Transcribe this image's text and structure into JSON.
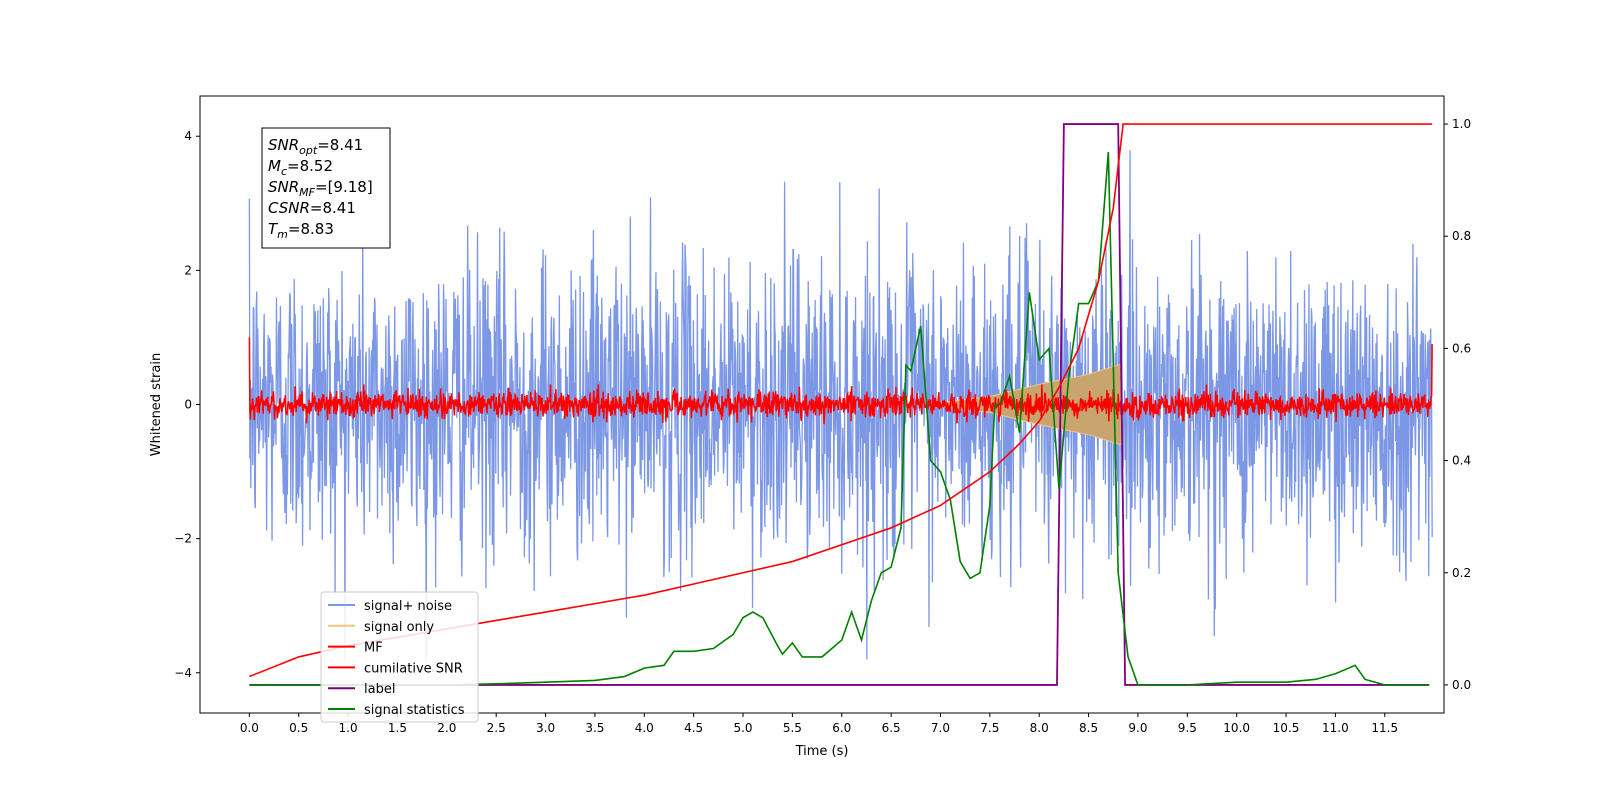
{
  "chart_data": {
    "type": "line",
    "xlabel": "Time (s)",
    "ylabel": "Whitened strain",
    "xlim": [
      -0.5,
      12.1
    ],
    "ylim": [
      -4.6,
      4.6
    ],
    "y2lim": [
      -0.05,
      1.05
    ],
    "x_ticks": [
      0.0,
      0.5,
      1.0,
      1.5,
      2.0,
      2.5,
      3.0,
      3.5,
      4.0,
      4.5,
      5.0,
      5.5,
      6.0,
      6.5,
      7.0,
      7.5,
      8.0,
      8.5,
      9.0,
      9.5,
      10.0,
      10.5,
      11.0,
      11.5
    ],
    "x_tick_labels": [
      "0.0",
      "0.5",
      "1.0",
      "1.5",
      "2.0",
      "2.5",
      "3.0",
      "3.5",
      "4.0",
      "4.5",
      "5.0",
      "5.5",
      "6.0",
      "6.5",
      "7.0",
      "7.5",
      "8.0",
      "8.5",
      "9.0",
      "9.5",
      "10.0",
      "10.5",
      "11.0",
      "11.5"
    ],
    "y_ticks": [
      -4,
      -2,
      0,
      2,
      4
    ],
    "y_tick_labels": [
      "−4",
      "−2",
      "0",
      "2",
      "4"
    ],
    "y2_ticks": [
      0.0,
      0.2,
      0.4,
      0.6,
      0.8,
      1.0
    ],
    "y2_tick_labels": [
      "0.0",
      "0.2",
      "0.4",
      "0.6",
      "0.8",
      "1.0"
    ],
    "grid": false,
    "legend_placement": "lower-left",
    "annotation": {
      "lines": [
        {
          "base": "SNR",
          "sub": "opt",
          "value": "=8.41"
        },
        {
          "base": "M",
          "sub": "c",
          "value": "=8.52"
        },
        {
          "base": "SNR",
          "sub": "MF",
          "value": "=[9.18]"
        },
        {
          "base": "CSNR",
          "sub": "",
          "value": "=8.41"
        },
        {
          "base": "T",
          "sub": "m",
          "value": "=8.83"
        }
      ]
    },
    "series": [
      {
        "name": "signal+ noise",
        "axis": "left",
        "color": "#7b97e6",
        "style": "noise",
        "x_range": [
          0.0,
          11.98
        ],
        "typical_amplitude": 1.3,
        "peak_amplitude": 3.8
      },
      {
        "name": "signal only",
        "axis": "left",
        "color": "#f3c77a",
        "fill_color": "#c8a46e",
        "style": "chirp",
        "x_range": [
          7.0,
          8.83
        ],
        "envelope": [
          [
            7.0,
            0.03
          ],
          [
            7.5,
            0.12
          ],
          [
            8.0,
            0.3
          ],
          [
            8.5,
            0.45
          ],
          [
            8.83,
            0.6
          ]
        ]
      },
      {
        "name": "MF",
        "axis": "left",
        "color": "#ff0000",
        "style": "noise",
        "x_range": [
          0.0,
          11.98
        ],
        "typical_amplitude": 0.1,
        "peak_amplitude": 0.3,
        "endpoints": [
          [
            0.0,
            1.0
          ],
          [
            11.98,
            0.9
          ]
        ]
      },
      {
        "name": "cumilative SNR",
        "axis": "right",
        "color": "#ff0000",
        "x": [
          0.0,
          0.5,
          1.0,
          1.5,
          2.0,
          2.5,
          3.0,
          3.5,
          4.0,
          4.5,
          5.0,
          5.5,
          6.0,
          6.5,
          7.0,
          7.5,
          7.8,
          8.0,
          8.2,
          8.4,
          8.6,
          8.75,
          8.85,
          11.98
        ],
        "y": [
          0.015,
          0.05,
          0.07,
          0.085,
          0.1,
          0.115,
          0.13,
          0.145,
          0.16,
          0.18,
          0.2,
          0.22,
          0.25,
          0.28,
          0.32,
          0.38,
          0.43,
          0.47,
          0.53,
          0.6,
          0.72,
          0.85,
          1.0,
          1.0
        ]
      },
      {
        "name": "label",
        "axis": "right",
        "color": "#800080",
        "x": [
          0.0,
          8.18,
          8.25,
          8.8,
          8.87,
          11.95
        ],
        "y": [
          0.0,
          0.0,
          1.0,
          1.0,
          0.0,
          0.0
        ]
      },
      {
        "name": "signal statistics",
        "axis": "right",
        "color": "#008000",
        "x": [
          0.0,
          0.5,
          1.0,
          1.5,
          2.0,
          2.5,
          3.0,
          3.5,
          3.8,
          4.0,
          4.2,
          4.3,
          4.5,
          4.7,
          4.9,
          5.0,
          5.1,
          5.2,
          5.35,
          5.4,
          5.5,
          5.6,
          5.8,
          6.0,
          6.1,
          6.2,
          6.3,
          6.4,
          6.5,
          6.6,
          6.65,
          6.7,
          6.8,
          6.9,
          7.0,
          7.1,
          7.2,
          7.3,
          7.4,
          7.5,
          7.55,
          7.6,
          7.7,
          7.8,
          7.9,
          8.0,
          8.1,
          8.2,
          8.3,
          8.4,
          8.5,
          8.6,
          8.7,
          8.8,
          8.9,
          9.0,
          9.5,
          10.0,
          10.5,
          10.8,
          11.0,
          11.2,
          11.3,
          11.5,
          11.95
        ],
        "y": [
          0.0,
          0.0,
          0.0,
          0.0,
          0.0,
          0.002,
          0.005,
          0.008,
          0.015,
          0.03,
          0.035,
          0.06,
          0.06,
          0.065,
          0.09,
          0.12,
          0.13,
          0.12,
          0.07,
          0.055,
          0.075,
          0.05,
          0.05,
          0.08,
          0.13,
          0.08,
          0.15,
          0.2,
          0.21,
          0.28,
          0.57,
          0.56,
          0.64,
          0.4,
          0.38,
          0.33,
          0.22,
          0.19,
          0.2,
          0.32,
          0.5,
          0.5,
          0.55,
          0.45,
          0.7,
          0.58,
          0.6,
          0.35,
          0.55,
          0.68,
          0.68,
          0.72,
          0.95,
          0.2,
          0.05,
          0.0,
          0.0,
          0.005,
          0.005,
          0.01,
          0.02,
          0.035,
          0.01,
          0.0,
          0.0
        ]
      }
    ]
  }
}
